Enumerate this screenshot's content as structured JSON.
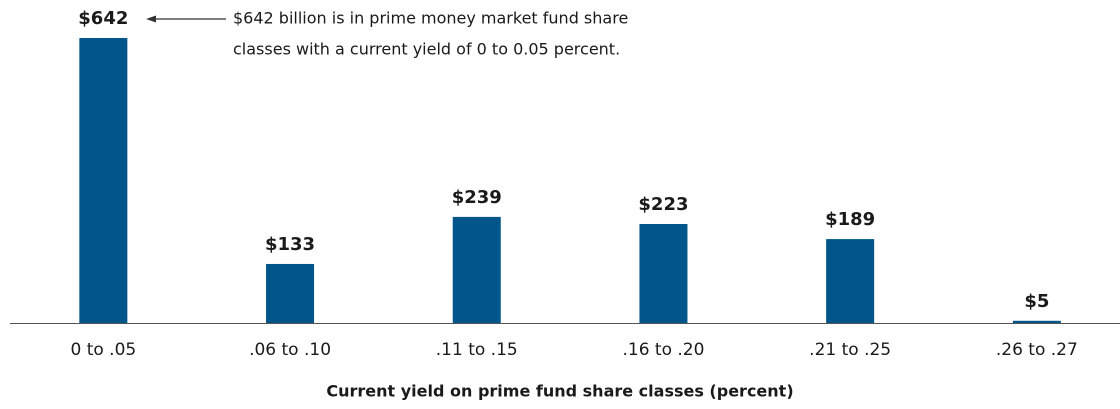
{
  "chart_data": {
    "type": "bar",
    "x_label": "Current yield on prime fund share classes (percent)",
    "annotation": [
      "$642 billion is in prime money market fund share",
      "classes with a current yield of 0 to 0.05 percent."
    ],
    "categories": [
      "0 to .05",
      ".06 to .10",
      ".11 to .15",
      ".16 to .20",
      ".21 to .25",
      ".26 to .27"
    ],
    "values": [
      642,
      133,
      239,
      223,
      189,
      5
    ],
    "value_labels": [
      "$642",
      "$133",
      "$239",
      "$223",
      "$189",
      "$5"
    ],
    "color": "#00568a"
  }
}
